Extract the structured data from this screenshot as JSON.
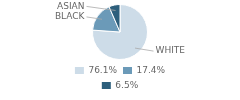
{
  "chart_data": {
    "type": "pie",
    "categories": [
      "WHITE",
      "BLACK",
      "ASIAN"
    ],
    "values": [
      76.1,
      17.4,
      6.5
    ],
    "value_labels": [
      "76.1%",
      "17.4%",
      "6.5%"
    ],
    "colors": [
      "#cddce8",
      "#6b9ab8",
      "#2d5f7c"
    ],
    "legend": "bottom"
  }
}
